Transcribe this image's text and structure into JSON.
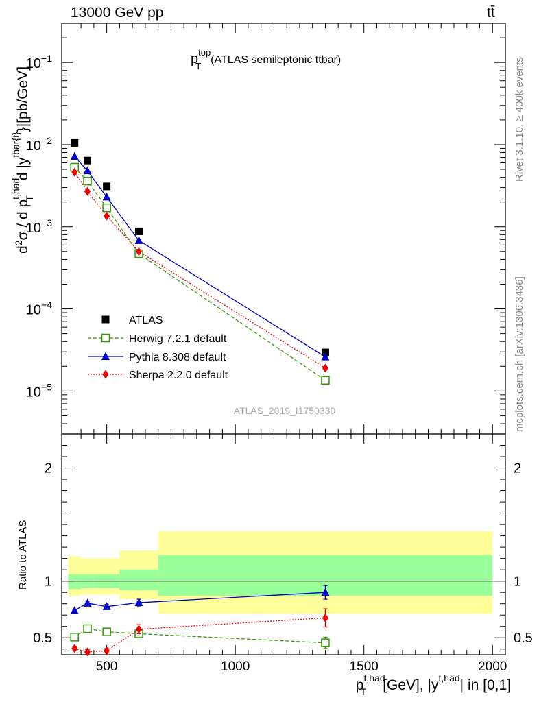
{
  "header": {
    "energy_label": "13000 GeV pp",
    "process_label": "tt̄"
  },
  "side_labels": {
    "rivet": "Rivet 3.1.10, ≥ 400k events",
    "mcplots": "mcplots.cern.ch [arXiv:1306.3436]"
  },
  "colors": {
    "data": "#000000",
    "herwig": "#339900",
    "pythia": "#0000cc",
    "sherpa": "#ee0000",
    "band_inner": "#99ff99",
    "band_outer": "#ffff99"
  },
  "chart_data": [
    {
      "type": "scatter",
      "panel": "main",
      "title": "p_T^top (ATLAS semileptonic ttbar)",
      "title_main": "p",
      "title_sup": "top",
      "title_sub": "T",
      "title_rest": "(ATLAS semileptonic ttbar)",
      "ylabel": "d²σ / d p_T^{t,had} d |y^{tbar{t}}|[pb/GeV]",
      "yscale": "log",
      "ylim": [
        3e-06,
        0.3
      ],
      "xlim": [
        325,
        2050
      ],
      "y_ticks": [
        {
          "value": 0.1,
          "label": "10",
          "exp": "−1"
        },
        {
          "value": 0.01,
          "label": "10",
          "exp": "−2"
        },
        {
          "value": 0.001,
          "label": "10",
          "exp": "−3"
        },
        {
          "value": 0.0001,
          "label": "10",
          "exp": "−4"
        },
        {
          "value": 1e-05,
          "label": "10",
          "exp": "−5"
        }
      ],
      "watermark": "ATLAS_2019_I1750330",
      "series": [
        {
          "name": "ATLAS",
          "key": "data",
          "x": [
            375,
            425,
            500,
            625,
            1350
          ],
          "y": [
            0.0105,
            0.0064,
            0.0031,
            0.00088,
            2.95e-05
          ]
        },
        {
          "name": "Herwig 7.2.1 default",
          "key": "herwig",
          "x": [
            375,
            425,
            500,
            625,
            1350
          ],
          "y": [
            0.0053,
            0.0036,
            0.0017,
            0.00047,
            1.35e-05
          ]
        },
        {
          "name": "Pythia 8.308 default",
          "key": "pythia",
          "x": [
            375,
            425,
            500,
            625,
            1350
          ],
          "y": [
            0.0072,
            0.0048,
            0.0023,
            0.00068,
            2.6e-05
          ]
        },
        {
          "name": "Sherpa 2.2.0 default",
          "key": "sherpa",
          "x": [
            375,
            425,
            500,
            625,
            1350
          ],
          "y": [
            0.0046,
            0.0027,
            0.00135,
            0.0005,
            1.9e-05
          ]
        }
      ]
    },
    {
      "type": "scatter",
      "panel": "ratio",
      "ylabel": "Ratio to ATLAS",
      "xlabel": "p_T^{t,had} [GeV], |y^{t,had}| in [0,1]",
      "xlabel_main": "p",
      "xlabel_sup": "t,had",
      "xlabel_sub": "T",
      "xlabel_mid": "[GeV], |y",
      "xlabel_sup2": "t,had",
      "xlabel_end": "| in [0,1]",
      "ylim": [
        0.35,
        2.3
      ],
      "xlim": [
        325,
        2050
      ],
      "x_ticks": [
        500,
        1000,
        1500,
        2000
      ],
      "y_ticks": [
        0.5,
        1,
        2
      ],
      "band": {
        "edges": [
          350,
          400,
          450,
          550,
          700,
          2000
        ],
        "inner": [
          [
            0.93,
            1.06
          ],
          [
            0.94,
            1.06
          ],
          [
            0.94,
            1.06
          ],
          [
            0.92,
            1.1
          ],
          [
            0.87,
            1.23
          ]
        ],
        "outer": [
          [
            0.87,
            1.22
          ],
          [
            0.88,
            1.2
          ],
          [
            0.88,
            1.2
          ],
          [
            0.84,
            1.27
          ],
          [
            0.71,
            1.44
          ]
        ]
      },
      "series": [
        {
          "name": "Herwig 7.2.1 default",
          "key": "herwig",
          "x": [
            375,
            425,
            500,
            625,
            1350
          ],
          "y": [
            0.505,
            0.58,
            0.552,
            0.535,
            0.455
          ],
          "err": [
            0.01,
            0.01,
            0.01,
            0.015,
            0.05
          ]
        },
        {
          "name": "Pythia 8.308 default",
          "key": "pythia",
          "x": [
            375,
            425,
            500,
            625,
            1350
          ],
          "y": [
            0.74,
            0.805,
            0.775,
            0.81,
            0.9
          ],
          "err": [
            0.01,
            0.015,
            0.02,
            0.03,
            0.06
          ]
        },
        {
          "name": "Sherpa 2.2.0 default",
          "key": "sherpa",
          "x": [
            375,
            425,
            500,
            625,
            1350
          ],
          "y": [
            0.405,
            0.375,
            0.385,
            0.575,
            0.675
          ],
          "err": [
            0.015,
            0.02,
            0.02,
            0.04,
            0.08
          ]
        }
      ]
    }
  ]
}
